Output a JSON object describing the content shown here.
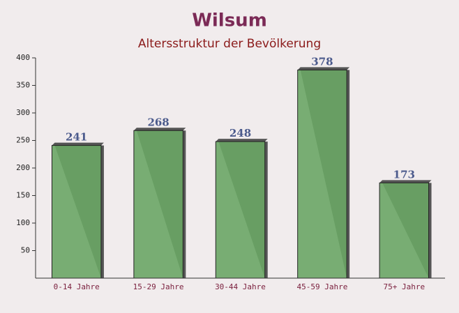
{
  "chart_data": {
    "type": "bar",
    "title": "Wilsum",
    "subtitle": "Altersstruktur der Bevölkerung",
    "categories": [
      "0-14 Jahre",
      "15-29 Jahre",
      "30-44 Jahre",
      "45-59 Jahre",
      "75+ Jahre"
    ],
    "values": [
      241,
      268,
      248,
      378,
      173
    ],
    "color": "#6aa665",
    "ylim": [
      0,
      400
    ],
    "yticks": [
      50,
      100,
      150,
      200,
      250,
      300,
      350,
      400
    ],
    "grid": false
  }
}
